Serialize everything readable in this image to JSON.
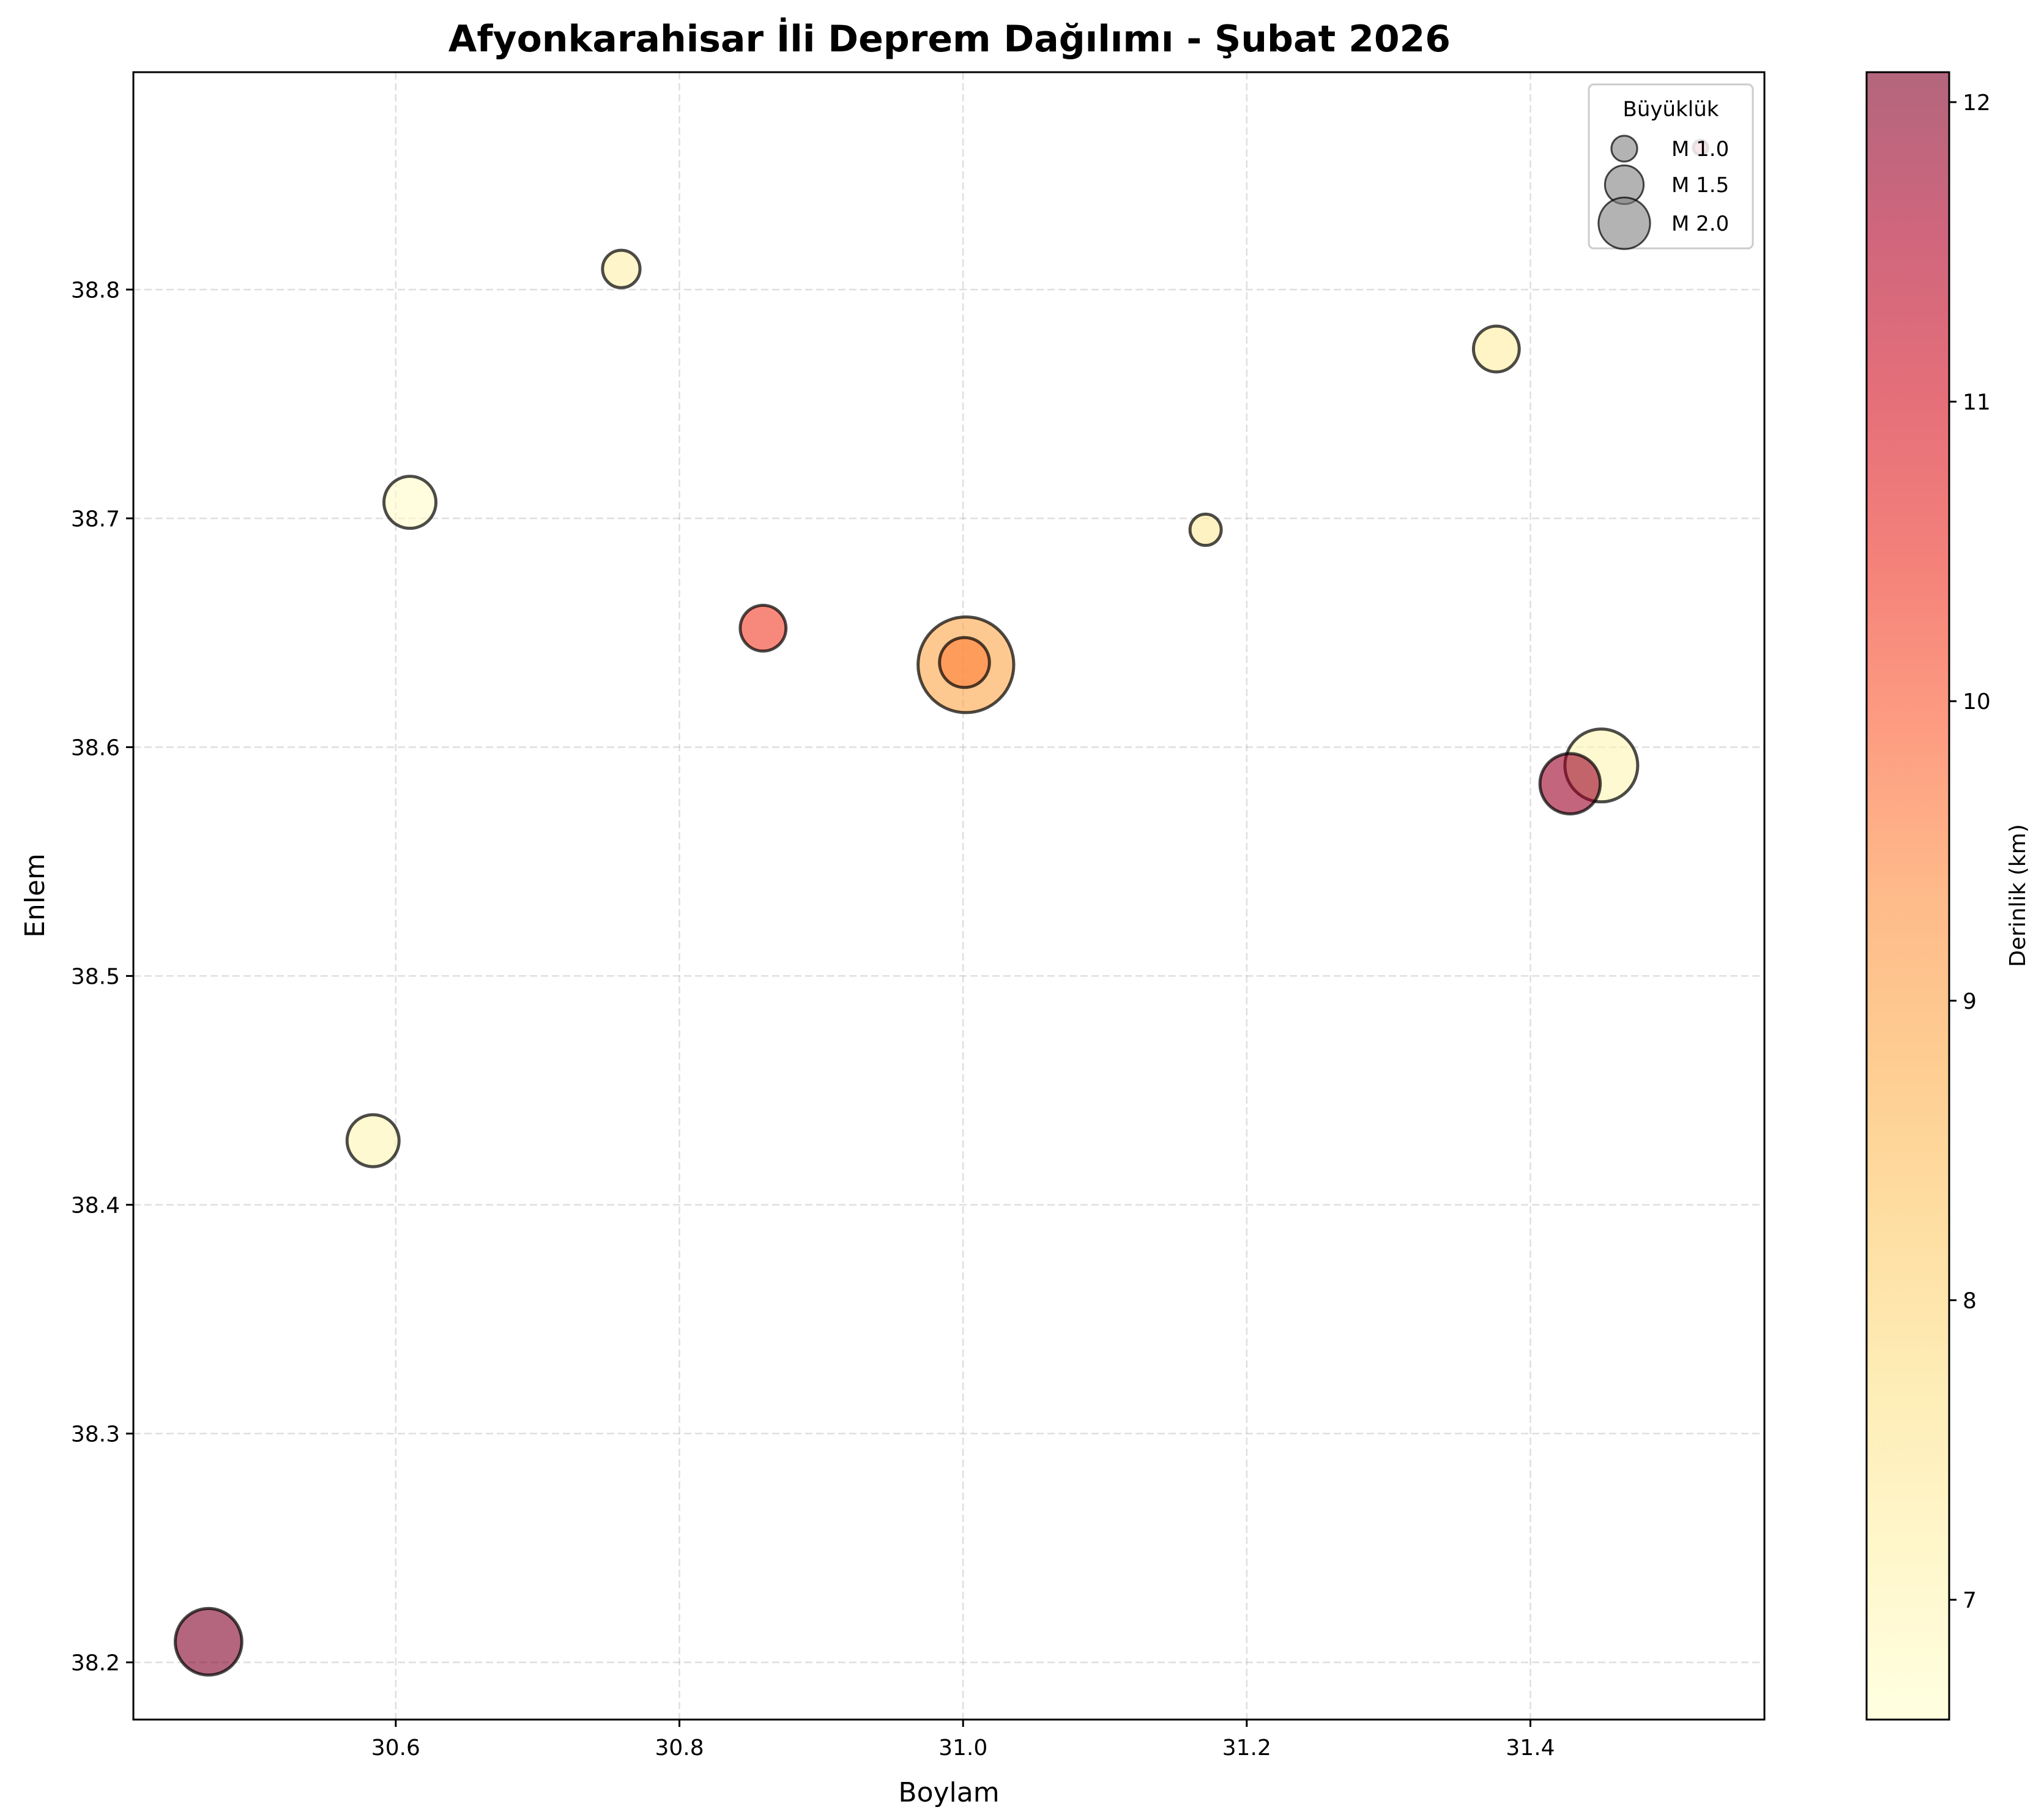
{
  "chart_data": {
    "type": "scatter",
    "title": "Afyonkarahisar İli Deprem Dağılımı - Şubat 2026",
    "xlabel": "Boylam",
    "ylabel": "Enlem",
    "xlim": [
      30.415,
      31.565
    ],
    "ylim": [
      38.175,
      38.895
    ],
    "xticks": [
      30.6,
      30.8,
      31.0,
      31.2,
      31.4
    ],
    "xtick_labels": [
      "30.6",
      "30.8",
      "31.0",
      "31.2",
      "31.4"
    ],
    "yticks": [
      38.2,
      38.3,
      38.4,
      38.5,
      38.6,
      38.7,
      38.8
    ],
    "ytick_labels": [
      "38.2",
      "38.3",
      "38.4",
      "38.5",
      "38.6",
      "38.7",
      "38.8"
    ],
    "grid": true,
    "colorbar": {
      "label": "Derinlik (km)",
      "colormap": "YlOrRd",
      "range": [
        6.6,
        12.1
      ],
      "ticks": [
        7,
        8,
        9,
        10,
        11,
        12
      ],
      "tick_labels": [
        "7",
        "8",
        "9",
        "10",
        "11",
        "12"
      ],
      "alpha": 0.6
    },
    "legend": {
      "title": "Büyüklük",
      "placement": "upper right",
      "entries": [
        {
          "label": "M 1.0",
          "magnitude": 1.0
        },
        {
          "label": "M 1.5",
          "magnitude": 1.5
        },
        {
          "label": "M 2.0",
          "magnitude": 2.0
        }
      ]
    },
    "points": [
      {
        "lon": 30.468,
        "lat": 38.209,
        "magnitude": 1.6,
        "depth": 12.1
      },
      {
        "lon": 30.584,
        "lat": 38.428,
        "magnitude": 1.25,
        "depth": 7.0
      },
      {
        "lon": 30.61,
        "lat": 38.707,
        "magnitude": 1.25,
        "depth": 6.7
      },
      {
        "lon": 30.759,
        "lat": 38.809,
        "magnitude": 0.9,
        "depth": 7.2
      },
      {
        "lon": 30.859,
        "lat": 38.652,
        "magnitude": 1.1,
        "depth": 10.3
      },
      {
        "lon": 31.002,
        "lat": 38.636,
        "magnitude": 2.3,
        "depth": 8.9
      },
      {
        "lon": 31.001,
        "lat": 38.637,
        "magnitude": 1.2,
        "depth": 9.5
      },
      {
        "lon": 31.171,
        "lat": 38.695,
        "magnitude": 0.75,
        "depth": 7.4
      },
      {
        "lon": 31.376,
        "lat": 38.774,
        "magnitude": 1.1,
        "depth": 7.3
      },
      {
        "lon": 31.428,
        "lat": 38.584,
        "magnitude": 1.45,
        "depth": 11.8
      },
      {
        "lon": 31.45,
        "lat": 38.592,
        "magnitude": 1.75,
        "depth": 7.0
      },
      {
        "lon": 31.52,
        "lat": 38.862,
        "magnitude": 0.35,
        "depth": 11.5
      }
    ]
  }
}
